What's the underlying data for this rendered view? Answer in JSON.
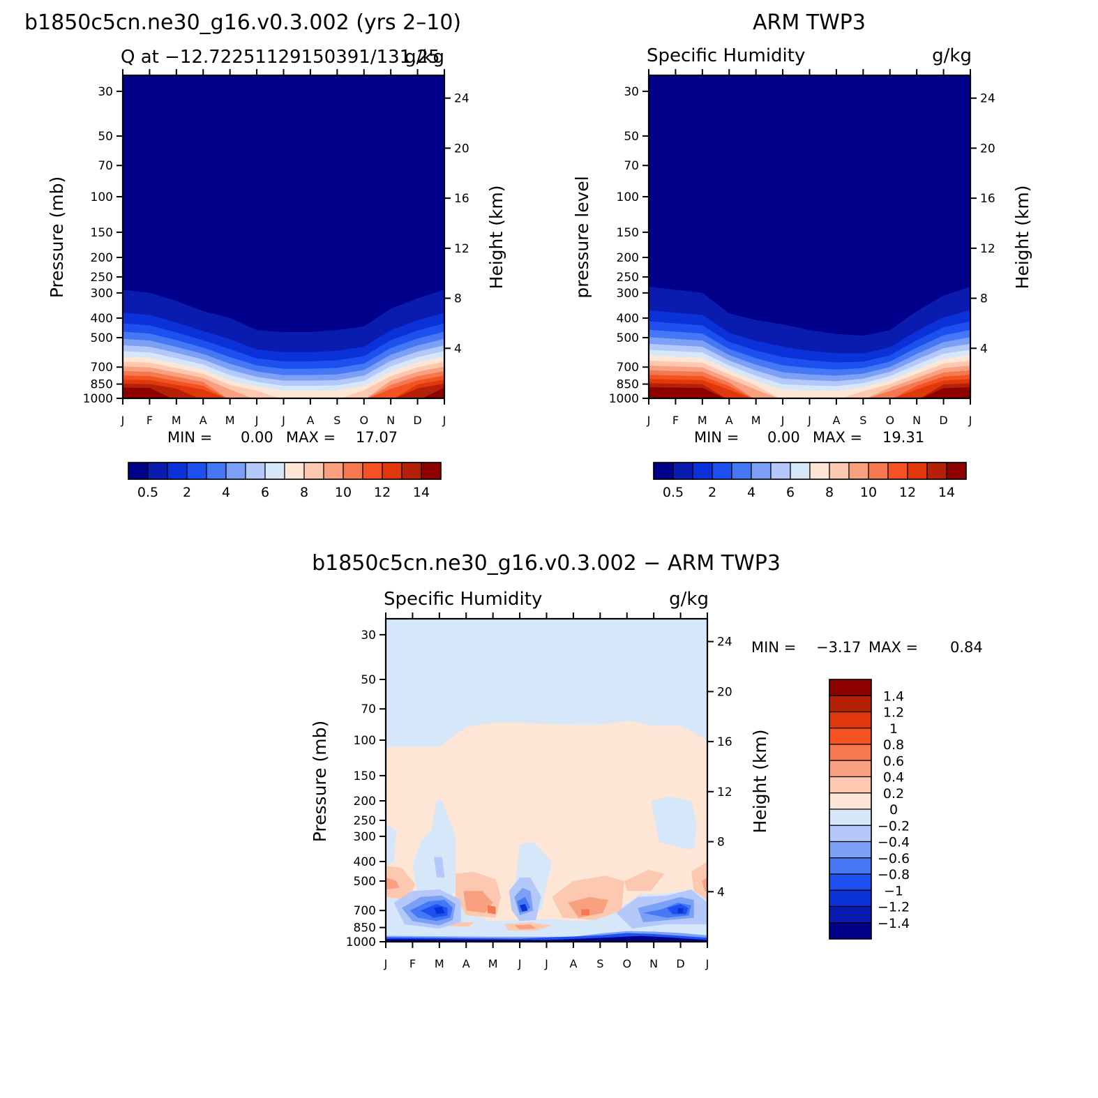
{
  "chart_data": [
    {
      "type": "heatmap",
      "id": "model",
      "title": "b1850c5cn.ne30_g16.v0.3.002 (yrs 2–10)",
      "left_string": "Q at −12.72251129150391/131.25",
      "right_string": "g/kg",
      "ylabel": "Pressure (mb)",
      "ylabel_right": "Height (km)",
      "x_months": [
        "J",
        "F",
        "M",
        "A",
        "M",
        "J",
        "J",
        "A",
        "S",
        "O",
        "N",
        "D",
        "J"
      ],
      "y_ticks": [
        30,
        50,
        70,
        100,
        150,
        200,
        250,
        300,
        400,
        500,
        700,
        850,
        1000
      ],
      "y_ticks_right": [
        4,
        8,
        12,
        16,
        20,
        24
      ],
      "ylim": [
        1000,
        25
      ],
      "min_label": "MIN =",
      "min_value": "0.00",
      "max_label": "MAX =",
      "max_value": "17.07",
      "colorbar_levels": [
        0.5,
        1,
        2,
        3,
        4,
        5,
        6,
        7,
        8,
        9,
        10,
        11,
        12,
        13,
        14
      ],
      "colorbar_labels": [
        "0.5",
        "2",
        "4",
        "6",
        "8",
        "10",
        "12",
        "14"
      ],
      "surface_q_by_month": [
        15.2,
        15.0,
        14.2,
        12.5,
        10.3,
        8.6,
        7.8,
        7.6,
        8.0,
        9.3,
        11.5,
        13.8,
        15.2
      ],
      "moist_top_mb_by_month": [
        290,
        300,
        330,
        370,
        400,
        460,
        470,
        470,
        460,
        440,
        360,
        320,
        290
      ]
    },
    {
      "type": "heatmap",
      "id": "obs",
      "title": "ARM TWP3",
      "left_string": "Specific Humidity",
      "right_string": "g/kg",
      "ylabel": "pressure level",
      "ylabel_right": "Height (km)",
      "x_months": [
        "J",
        "F",
        "M",
        "A",
        "M",
        "J",
        "J",
        "A",
        "S",
        "O",
        "N",
        "D",
        "J"
      ],
      "y_ticks": [
        30,
        50,
        70,
        100,
        150,
        200,
        250,
        300,
        400,
        500,
        700,
        850,
        1000
      ],
      "y_ticks_right": [
        4,
        8,
        12,
        16,
        20,
        24
      ],
      "ylim": [
        1000,
        25
      ],
      "min_label": "MIN =",
      "min_value": "0.00",
      "max_label": "MAX =",
      "max_value": "19.31",
      "colorbar_levels": [
        0.5,
        1,
        2,
        3,
        4,
        5,
        6,
        7,
        8,
        9,
        10,
        11,
        12,
        13,
        14
      ],
      "colorbar_labels": [
        "0.5",
        "2",
        "4",
        "6",
        "8",
        "10",
        "12",
        "14"
      ],
      "surface_q_by_month": [
        16.5,
        16.2,
        15.5,
        13.0,
        10.0,
        8.2,
        7.5,
        7.5,
        8.5,
        10.5,
        13.0,
        15.0,
        16.5
      ],
      "moist_top_mb_by_month": [
        280,
        290,
        300,
        380,
        410,
        430,
        460,
        480,
        490,
        460,
        370,
        310,
        280
      ]
    },
    {
      "type": "heatmap",
      "id": "diff",
      "title": "b1850c5cn.ne30_g16.v0.3.002 − ARM TWP3",
      "left_string": "Specific Humidity",
      "right_string": "g/kg",
      "ylabel": "Pressure (mb)",
      "ylabel_right": "Height (km)",
      "x_months": [
        "J",
        "F",
        "M",
        "A",
        "M",
        "J",
        "J",
        "A",
        "S",
        "O",
        "N",
        "D",
        "J"
      ],
      "y_ticks": [
        30,
        50,
        70,
        100,
        150,
        200,
        250,
        300,
        400,
        500,
        700,
        850,
        1000
      ],
      "y_ticks_right": [
        4,
        8,
        12,
        16,
        20,
        24
      ],
      "ylim": [
        1000,
        25
      ],
      "min_label": "MIN =",
      "min_value": "−3.17",
      "max_label": "MAX =",
      "max_value": "0.84",
      "colorbar_levels": [
        -1.4,
        -1.2,
        -1,
        -0.8,
        -0.6,
        -0.4,
        -0.2,
        0,
        0.2,
        0.4,
        0.6,
        0.8,
        1,
        1.2,
        1.4
      ],
      "colorbar_labels": [
        "1.4",
        "1.2",
        "1",
        "0.8",
        "0.6",
        "0.4",
        "0.2",
        "0",
        "−0.2",
        "−0.4",
        "−0.6",
        "−0.8",
        "−1",
        "−1.2",
        "−1.4"
      ]
    }
  ],
  "colors": {
    "scale": [
      "#00008b",
      "#0a1cb0",
      "#0a32d8",
      "#1e50f0",
      "#4678f5",
      "#7ca0f5",
      "#b4c8fa",
      "#d7e7fa",
      "#fde6d6",
      "#fcc8b0",
      "#f8a080",
      "#f47850",
      "#f45222",
      "#e0380a",
      "#b42008",
      "#8c0000"
    ]
  }
}
